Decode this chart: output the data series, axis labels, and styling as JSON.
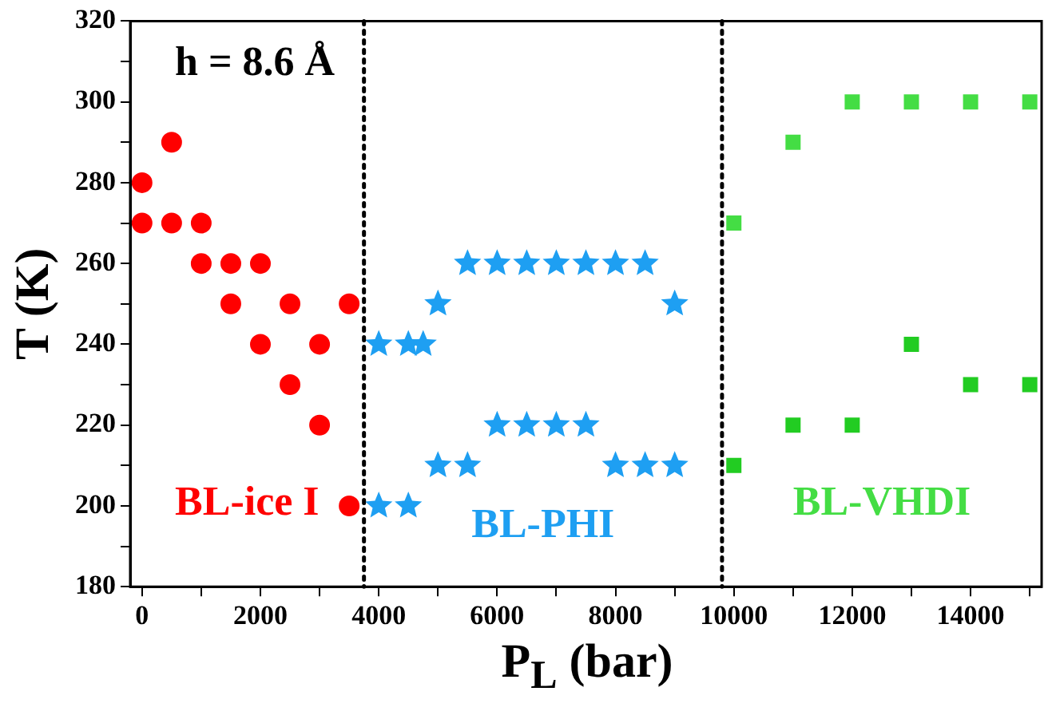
{
  "chart_data": {
    "type": "scatter",
    "xlabel": "P$_{L}$ (bar)",
    "ylabel": "T (K)",
    "xlim": [
      -200,
      15200
    ],
    "ylim": [
      180,
      320
    ],
    "xticks": [
      0,
      {
        "value": 1000,
        "label": null
      },
      2000,
      {
        "value": 3000,
        "label": null
      },
      4000,
      {
        "value": 5000,
        "label": null
      },
      6000,
      {
        "value": 7000,
        "label": null
      },
      8000,
      {
        "value": 9000,
        "label": null
      },
      10000,
      {
        "value": 11000,
        "label": null
      },
      12000,
      {
        "value": 13000,
        "label": null
      },
      14000,
      {
        "value": 15000,
        "label": null
      }
    ],
    "yticks": [
      180,
      {
        "value": 190,
        "label": null
      },
      200,
      {
        "value": 210,
        "label": null
      },
      220,
      {
        "value": 230,
        "label": null
      },
      240,
      {
        "value": 250,
        "label": null
      },
      260,
      {
        "value": 270,
        "label": null
      },
      280,
      {
        "value": 290,
        "label": null
      },
      300,
      {
        "value": 310,
        "label": null
      },
      320
    ],
    "grid": false,
    "legend": false,
    "series": [
      {
        "color": "#ff0000",
        "marker": "circle",
        "x": [
          0,
          500,
          1000,
          1500,
          2000,
          2500,
          3000,
          3500
        ],
        "values": [
          280,
          290,
          270,
          260,
          260,
          250,
          240,
          250
        ]
      },
      {
        "color": "#ff0000",
        "marker": "circle",
        "x": [
          0,
          500,
          1000,
          1500,
          2000,
          2500,
          3000,
          3500
        ],
        "values": [
          270,
          270,
          260,
          250,
          240,
          230,
          220,
          200
        ]
      },
      {
        "color": "#1e9ff2",
        "marker": "star",
        "x": [
          4000,
          4500,
          4750,
          5000,
          5500,
          6000,
          6500,
          7000,
          7500,
          8000,
          8500,
          9000
        ],
        "values": [
          240,
          240,
          240,
          250,
          260,
          260,
          260,
          260,
          260,
          260,
          260,
          250
        ]
      },
      {
        "color": "#1e9ff2",
        "marker": "star",
        "x": [
          4000,
          4500,
          5000,
          5500,
          6000,
          6500,
          7000,
          7500,
          8000,
          8500,
          9000
        ],
        "values": [
          200,
          200,
          210,
          210,
          220,
          220,
          220,
          220,
          210,
          210,
          210
        ]
      },
      {
        "color": "#44dd44",
        "marker": "square",
        "x": [
          10000,
          11000,
          12000,
          13000,
          14000,
          15000
        ],
        "values": [
          270,
          290,
          300,
          300,
          300,
          300
        ]
      },
      {
        "color": "#22cc22",
        "marker": "square",
        "x": [
          10000,
          11000,
          12000,
          13000,
          14000,
          15000
        ],
        "values": [
          210,
          220,
          220,
          240,
          230,
          230
        ]
      }
    ],
    "ref_lines": [
      {
        "axis": "x",
        "value": 3750,
        "color": "#000000",
        "line_style": "dotted"
      },
      {
        "axis": "x",
        "value": 9800,
        "color": "#000000",
        "line_style": "dotted"
      }
    ],
    "annotations": [
      "h = 8.6 Å",
      "BL-ice I",
      "BL-PHI",
      "BL-VHDI"
    ]
  }
}
